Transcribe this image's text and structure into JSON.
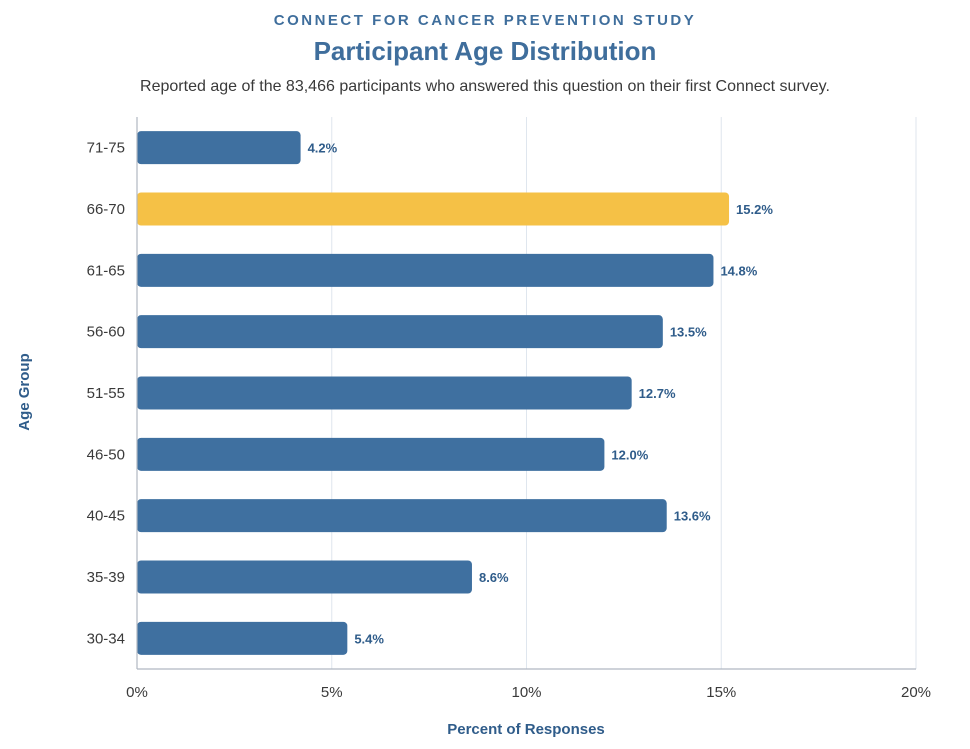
{
  "header": {
    "kicker": "CONNECT FOR CANCER PREVENTION STUDY",
    "title": "Participant Age Distribution",
    "subtitle": "Reported age of the 83,466 participants who answered this question on their first Connect survey."
  },
  "colors": {
    "bar": "#3f70a0",
    "highlight": "#f5c146",
    "grid": "#dfe6ee",
    "axis": "#b0b8c2"
  },
  "chart_data": {
    "type": "bar",
    "orientation": "horizontal",
    "categories": [
      "71-75",
      "66-70",
      "61-65",
      "56-60",
      "51-55",
      "46-50",
      "40-45",
      "35-39",
      "30-34"
    ],
    "values": [
      4.2,
      15.2,
      14.8,
      13.5,
      12.7,
      12.0,
      13.6,
      8.6,
      5.4
    ],
    "value_labels": [
      "4.2%",
      "15.2%",
      "14.8%",
      "13.5%",
      "12.7%",
      "12.0%",
      "13.6%",
      "8.6%",
      "5.4%"
    ],
    "highlight_category": "66-70",
    "xlabel": "Percent of Responses",
    "ylabel": "Age Group",
    "xlim": [
      0,
      20
    ],
    "xticks": [
      0,
      5,
      10,
      15,
      20
    ],
    "xtick_labels": [
      "0%",
      "5%",
      "10%",
      "15%",
      "20%"
    ],
    "grid": true
  }
}
